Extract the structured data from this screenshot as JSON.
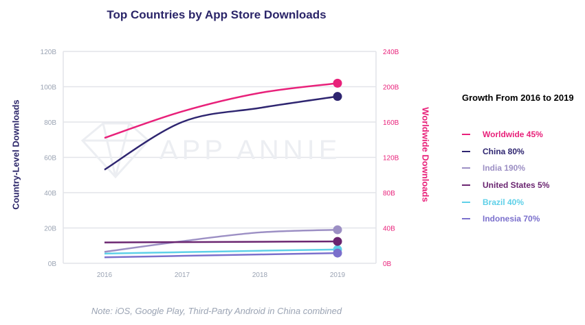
{
  "chart_data": {
    "type": "line",
    "title": "Top Countries by App Store Downloads",
    "ylabel_left": "Country-Level Downloads",
    "ylabel_right": "Worldwide Downloads",
    "categories": [
      "2016",
      "2017",
      "2018",
      "2019"
    ],
    "ylim_left": [
      0,
      120
    ],
    "ylim_right": [
      0,
      240
    ],
    "yticks_left": [
      "0B",
      "20B",
      "40B",
      "60B",
      "80B",
      "100B",
      "120B"
    ],
    "yticks_right": [
      "0B",
      "40B",
      "80B",
      "120B",
      "160B",
      "200B",
      "240B"
    ],
    "grid": true,
    "watermark": "APP ANNIE",
    "legend_position": "right",
    "legend_title": "Growth From 2016 to 2019",
    "series": [
      {
        "name": "Worldwide",
        "growth": "45%",
        "axis": "right",
        "color": "#e8217a",
        "values": [
          142,
          172,
          193,
          204
        ]
      },
      {
        "name": "China",
        "growth": "80%",
        "axis": "left",
        "color": "#2e2570",
        "values": [
          53,
          80,
          88,
          94.5
        ]
      },
      {
        "name": "India",
        "growth": "190%",
        "axis": "left",
        "color": "#9c8fc4",
        "values": [
          6.5,
          12.5,
          17.5,
          19
        ]
      },
      {
        "name": "United States",
        "growth": "5%",
        "axis": "left",
        "color": "#6a2570",
        "values": [
          11.8,
          12,
          12.2,
          12.4
        ]
      },
      {
        "name": "Brazil",
        "growth": "40%",
        "axis": "left",
        "color": "#5ed0e8",
        "values": [
          5.5,
          6.3,
          7.1,
          7.8
        ]
      },
      {
        "name": "Indonesia",
        "growth": "70%",
        "axis": "left",
        "color": "#7a6fcc",
        "values": [
          3.4,
          4.2,
          5.0,
          5.8
        ]
      }
    ],
    "note": "Note: iOS, Google Play, Third-Party Android in China combined"
  },
  "colors": {
    "title": "#2a2468",
    "left_axis_label": "#2a2468",
    "right_axis_label": "#e8217a",
    "left_tick": "#9aa3b3",
    "right_tick": "#e8217a",
    "grid": "#e2e4e9"
  }
}
